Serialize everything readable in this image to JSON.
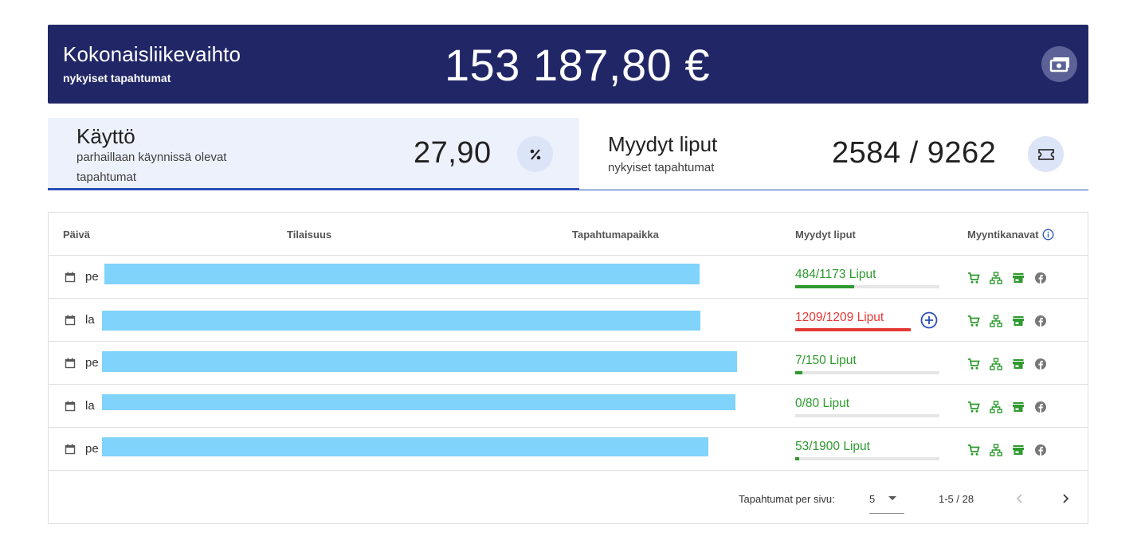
{
  "banner": {
    "title": "Kokonaisliikevaihto",
    "subtitle": "nykyiset tapahtumat",
    "amount": "153 187,80 €",
    "icon": "money-icon"
  },
  "usage": {
    "title": "Käyttö",
    "subtitle_line1": "parhaillaan käynnissä olevat",
    "subtitle_line2": "tapahtumat",
    "value": "27,90",
    "icon": "percent-icon"
  },
  "sold": {
    "title": "Myydyt liput",
    "subtitle": "nykyiset tapahtumat",
    "value": "2584 / 9262",
    "icon": "ticket-icon"
  },
  "table": {
    "headers": {
      "date": "Päivä",
      "event": "Tilaisuus",
      "venue": "Tapahtumapaikka",
      "sold": "Myydyt liput",
      "channels": "Myyntikanavat"
    },
    "rows": [
      {
        "day": "pe",
        "sold_label": "484/1173 Liput",
        "fill": 0.41,
        "status": "green",
        "add": false
      },
      {
        "day": "la",
        "sold_label": "1209/1209 Liput",
        "fill": 1.0,
        "status": "red",
        "add": true
      },
      {
        "day": "pe",
        "sold_label": "7/150 Liput",
        "fill": 0.05,
        "status": "green",
        "add": false
      },
      {
        "day": "la",
        "sold_label": "0/80 Liput",
        "fill": 0.0,
        "status": "green",
        "add": false
      },
      {
        "day": "pe",
        "sold_label": "53/1900 Liput",
        "fill": 0.03,
        "status": "green",
        "add": false
      }
    ],
    "channel_icons": [
      "cart-icon",
      "network-icon",
      "store-icon",
      "facebook-icon"
    ]
  },
  "pagination": {
    "label": "Tapahtumat per sivu:",
    "per_page": "5",
    "range": "1-5 / 28"
  },
  "colors": {
    "banner": "#212766",
    "accent": "#2a4fb8",
    "green": "#2e9a2e",
    "red": "#e53935"
  }
}
